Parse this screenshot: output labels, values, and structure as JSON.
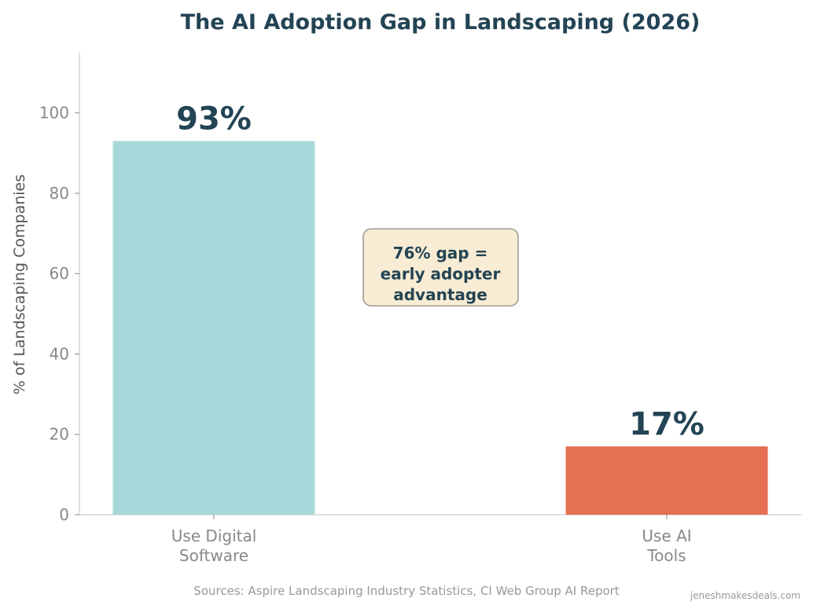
{
  "chart_data": {
    "type": "bar",
    "title": "The AI Adoption Gap in Landscaping (2026)",
    "xlabel": "",
    "ylabel": "% of Landscaping Companies",
    "categories": [
      "Use Digital\nSoftware",
      "Use AI\nTools"
    ],
    "values": [
      93,
      17
    ],
    "data_labels": [
      "93%",
      "17%"
    ],
    "colors": [
      "#a8d9da",
      "#e57053"
    ],
    "ylim": [
      0,
      115
    ],
    "yticks": [
      0,
      20,
      40,
      60,
      80,
      100
    ],
    "grid": false,
    "annotation": "76% gap =\nearly adopter\nadvantage",
    "annotation_y": 60,
    "source": "Sources: Aspire Landscaping Industry Statistics, CI Web Group AI Report",
    "watermark": "jeneshmakesdeals.com",
    "text_color": "#234454",
    "annotation_bg": "#f8ecd4"
  }
}
